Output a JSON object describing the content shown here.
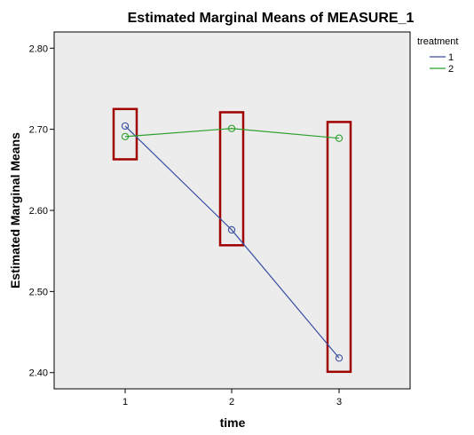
{
  "chart_data": {
    "type": "line",
    "title": "Estimated Marginal Means of MEASURE_1",
    "xlabel": "time",
    "ylabel": "Estimated Marginal Means",
    "categories": [
      "1",
      "2",
      "3"
    ],
    "ylim": [
      2.38,
      2.82
    ],
    "yticks": [
      "2.40",
      "2.50",
      "2.60",
      "2.70",
      "2.80"
    ],
    "series": [
      {
        "name": "1",
        "color": "#3a4fa3",
        "values": [
          2.704,
          2.576,
          2.418
        ]
      },
      {
        "name": "2",
        "color": "#2ca02c",
        "values": [
          2.691,
          2.701,
          2.689
        ]
      }
    ],
    "legend": {
      "title": "treatment",
      "placement": "top-right"
    },
    "annotations": {
      "type": "highlight-boxes",
      "color": "#a00000",
      "ranges": [
        {
          "category": "1",
          "from": 2.663,
          "to": 2.725
        },
        {
          "category": "2",
          "from": 2.557,
          "to": 2.721
        },
        {
          "category": "3",
          "from": 2.401,
          "to": 2.709
        }
      ]
    },
    "plot_background": "#ececec",
    "grid": false
  }
}
